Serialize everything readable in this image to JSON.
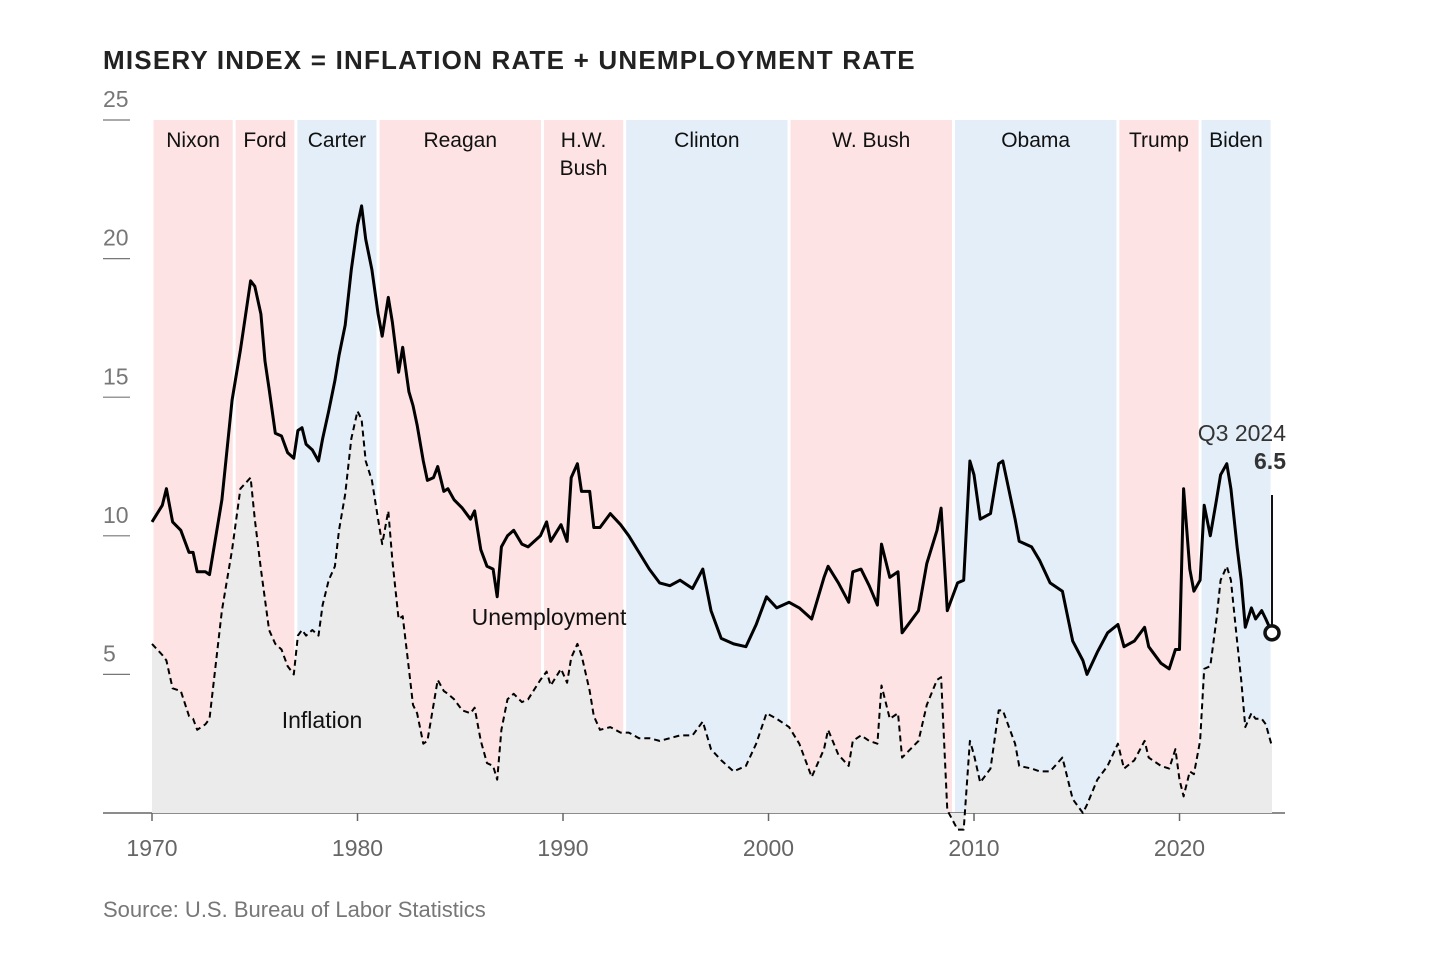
{
  "chart_data": {
    "type": "stacked-line",
    "title": "MISERY INDEX = INFLATION RATE + UNEMPLOYMENT RATE",
    "source": "Source: U.S. Bureau of Labor Statistics",
    "xlim": [
      1970,
      2024.5
    ],
    "xticks": [
      1970,
      1980,
      1990,
      2000,
      2010,
      2020
    ],
    "ylim": [
      0,
      25
    ],
    "yticks": [
      5,
      10,
      15,
      20,
      25
    ],
    "presidents": [
      {
        "name": "Nixon",
        "start": 1970,
        "end": 1974,
        "color": "#fde3e3"
      },
      {
        "name": "Ford",
        "start": 1974,
        "end": 1977,
        "color": "#fde3e3"
      },
      {
        "name": "Carter",
        "start": 1977,
        "end": 1981,
        "color": "#e3eef9"
      },
      {
        "name": "Reagan",
        "start": 1981,
        "end": 1989,
        "color": "#fde3e3"
      },
      {
        "name": "H.W. Bush",
        "start": 1989,
        "end": 1993,
        "color": "#fde3e3"
      },
      {
        "name": "Clinton",
        "start": 1993,
        "end": 2001,
        "color": "#e3eef9"
      },
      {
        "name": "W. Bush",
        "start": 2001,
        "end": 2009,
        "color": "#fde3e3"
      },
      {
        "name": "Obama",
        "start": 2009,
        "end": 2017,
        "color": "#e3eef9"
      },
      {
        "name": "Trump",
        "start": 2017,
        "end": 2021,
        "color": "#fde3e3"
      },
      {
        "name": "Biden",
        "start": 2021,
        "end": 2024.5,
        "color": "#e3eef9"
      }
    ],
    "x": [
      1970.0,
      1970.5,
      1970.7,
      1971.0,
      1971.4,
      1971.8,
      1972.0,
      1972.2,
      1972.6,
      1972.8,
      1973.4,
      1973.9,
      1974.3,
      1974.8,
      1975.0,
      1975.3,
      1975.5,
      1975.7,
      1976.0,
      1976.3,
      1976.6,
      1976.9,
      1977.1,
      1977.3,
      1977.5,
      1977.8,
      1978.1,
      1978.3,
      1978.6,
      1978.9,
      1979.1,
      1979.4,
      1979.7,
      1980.0,
      1980.2,
      1980.4,
      1980.7,
      1981.0,
      1981.2,
      1981.5,
      1981.7,
      1982.0,
      1982.2,
      1982.5,
      1982.7,
      1982.9,
      1983.2,
      1983.4,
      1983.7,
      1983.9,
      1984.2,
      1984.4,
      1984.7,
      1985.1,
      1985.5,
      1985.7,
      1986.0,
      1986.3,
      1986.6,
      1986.8,
      1987.0,
      1987.3,
      1987.6,
      1988.0,
      1988.3,
      1988.9,
      1989.2,
      1989.4,
      1989.9,
      1990.2,
      1990.4,
      1990.7,
      1990.9,
      1991.3,
      1991.5,
      1991.8,
      1992.3,
      1992.8,
      1993.2,
      1993.7,
      1994.2,
      1994.7,
      1995.2,
      1995.7,
      1996.3,
      1996.8,
      1997.2,
      1997.7,
      1998.3,
      1998.9,
      1999.4,
      1999.9,
      2000.4,
      2001.0,
      2001.5,
      2002.1,
      2002.7,
      2002.9,
      2003.4,
      2003.9,
      2004.1,
      2004.5,
      2004.9,
      2005.3,
      2005.5,
      2005.9,
      2006.3,
      2006.5,
      2007.3,
      2007.7,
      2008.2,
      2008.4,
      2008.7,
      2009.2,
      2009.5,
      2009.8,
      2010.0,
      2010.3,
      2010.8,
      2011.2,
      2011.4,
      2012.0,
      2012.2,
      2012.8,
      2013.2,
      2013.7,
      2014.3,
      2014.8,
      2015.3,
      2015.5,
      2016.0,
      2016.5,
      2017.0,
      2017.3,
      2017.8,
      2018.3,
      2018.5,
      2019.1,
      2019.5,
      2019.8,
      2020.0,
      2020.2,
      2020.5,
      2020.7,
      2021.0,
      2021.2,
      2021.5,
      2021.8,
      2022.0,
      2022.3,
      2022.5,
      2022.8,
      2023.0,
      2023.2,
      2023.5,
      2023.7,
      2024.0,
      2024.2,
      2024.5
    ],
    "series": [
      {
        "name": "Inflation",
        "color": "#000000",
        "fill": "#ebebeb",
        "dashed": true,
        "values": [
          6.1,
          5.7,
          5.5,
          4.5,
          4.4,
          3.5,
          3.4,
          3.0,
          3.2,
          3.4,
          7.3,
          9.5,
          11.7,
          12.1,
          10.6,
          8.8,
          7.7,
          6.6,
          6.1,
          5.9,
          5.3,
          5.0,
          6.4,
          6.6,
          6.4,
          6.6,
          6.4,
          7.5,
          8.4,
          8.9,
          10.2,
          11.5,
          13.5,
          14.5,
          14.2,
          12.7,
          12.0,
          10.6,
          9.7,
          10.9,
          9.1,
          7.0,
          7.1,
          5.2,
          3.9,
          3.6,
          2.5,
          2.6,
          3.9,
          4.8,
          4.4,
          4.3,
          4.1,
          3.7,
          3.6,
          3.8,
          2.6,
          1.8,
          1.7,
          1.2,
          3.0,
          4.1,
          4.3,
          4.0,
          4.1,
          4.8,
          5.1,
          4.6,
          5.2,
          4.7,
          5.6,
          6.1,
          5.7,
          4.4,
          3.5,
          3.0,
          3.1,
          2.9,
          2.9,
          2.7,
          2.7,
          2.6,
          2.7,
          2.8,
          2.8,
          3.3,
          2.3,
          1.9,
          1.5,
          1.7,
          2.5,
          3.6,
          3.4,
          3.1,
          2.5,
          1.3,
          2.3,
          3.0,
          2.1,
          1.7,
          2.6,
          2.8,
          2.6,
          2.5,
          4.6,
          3.4,
          3.6,
          2.0,
          2.6,
          3.9,
          4.8,
          4.9,
          0.1,
          -0.6,
          -0.6,
          2.6,
          2.1,
          1.1,
          1.6,
          3.7,
          3.7,
          2.5,
          1.7,
          1.6,
          1.5,
          1.5,
          2.0,
          0.5,
          0.0,
          0.3,
          1.2,
          1.7,
          2.5,
          1.6,
          1.9,
          2.6,
          2.0,
          1.7,
          1.6,
          2.3,
          1.2,
          0.6,
          1.5,
          1.4,
          2.6,
          5.2,
          5.3,
          7.0,
          8.4,
          8.9,
          8.4,
          6.2,
          4.8,
          3.1,
          3.6,
          3.4,
          3.4,
          3.2,
          2.4
        ]
      },
      {
        "name": "Unemployment",
        "color": "#000000",
        "dashed": false,
        "values": [
          4.4,
          5.4,
          6.2,
          6.0,
          5.8,
          5.9,
          6.0,
          5.7,
          5.5,
          5.2,
          4.0,
          5.4,
          5.0,
          7.1,
          8.4,
          9.2,
          8.6,
          8.7,
          7.6,
          7.7,
          7.7,
          7.8,
          7.4,
          7.3,
          6.9,
          6.5,
          6.3,
          6.0,
          6.1,
          6.7,
          6.3,
          6.1,
          6.1,
          6.7,
          7.7,
          8.0,
          7.6,
          7.4,
          7.5,
          7.7,
          8.6,
          8.9,
          9.7,
          10.0,
          10.8,
          10.4,
          10.2,
          9.4,
          8.2,
          7.7,
          7.2,
          7.4,
          7.2,
          7.3,
          7.0,
          7.1,
          6.9,
          7.1,
          7.1,
          6.6,
          6.6,
          5.9,
          5.9,
          5.7,
          5.5,
          5.2,
          5.4,
          5.2,
          5.2,
          5.1,
          6.5,
          6.5,
          5.9,
          7.2,
          6.8,
          7.3,
          7.7,
          7.5,
          7.1,
          6.7,
          6.1,
          5.7,
          5.5,
          5.6,
          5.3,
          5.5,
          5.0,
          4.4,
          4.6,
          4.3,
          4.3,
          4.2,
          4.0,
          4.5,
          4.9,
          5.7,
          6.2,
          5.9,
          6.2,
          5.9,
          6.1,
          6.0,
          5.6,
          5.0,
          5.1,
          5.1,
          5.1,
          4.5,
          4.7,
          5.1,
          5.4,
          6.1,
          7.2,
          8.9,
          9.0,
          10.1,
          10.1,
          9.5,
          9.2,
          8.9,
          9.0,
          8.1,
          8.1,
          8.0,
          7.6,
          6.8,
          6.0,
          5.7,
          5.5,
          4.7,
          4.6,
          4.8,
          4.3,
          4.4,
          4.3,
          4.1,
          4.0,
          3.7,
          3.6,
          3.6,
          4.7,
          11.1,
          7.3,
          6.6,
          5.8,
          5.9,
          4.7,
          4.3,
          3.8,
          3.7,
          3.3,
          3.4,
          3.6,
          3.6,
          3.8,
          3.6,
          3.9,
          3.8,
          4.1
        ]
      }
    ],
    "annotation": {
      "label": "Q3 2024",
      "value": 6.5
    }
  }
}
